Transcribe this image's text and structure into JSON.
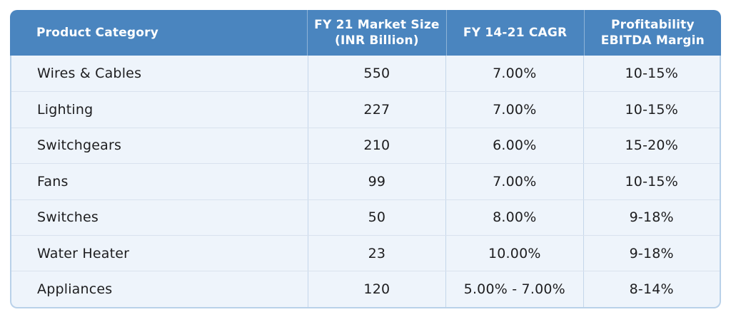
{
  "theme": {
    "header_bg": "#4a85bf",
    "header_text": "#ffffff",
    "row_bg": "#eef4fb",
    "body_text": "#1d1d1f",
    "border_outer": "#b9d1e9",
    "divider_vertical": "#c5d6ea",
    "divider_horizontal": "#d9e2ee"
  },
  "chart_data": {
    "type": "table",
    "title": "",
    "columns": [
      "Product Category",
      "FY 21 Market Size (INR Billion)",
      "FY 14-21 CAGR",
      "Profitability EBITDA Margin"
    ],
    "rows": [
      {
        "category": "Wires & Cables",
        "market_size_inr_billion": 550,
        "cagr": "7.00%",
        "ebitda_margin": "10-15%"
      },
      {
        "category": "Lighting",
        "market_size_inr_billion": 227,
        "cagr": "7.00%",
        "ebitda_margin": "10-15%"
      },
      {
        "category": "Switchgears",
        "market_size_inr_billion": 210,
        "cagr": "6.00%",
        "ebitda_margin": "15-20%"
      },
      {
        "category": "Fans",
        "market_size_inr_billion": 99,
        "cagr": "7.00%",
        "ebitda_margin": "10-15%"
      },
      {
        "category": "Switches",
        "market_size_inr_billion": 50,
        "cagr": "8.00%",
        "ebitda_margin": "9-18%"
      },
      {
        "category": "Water Heater",
        "market_size_inr_billion": 23,
        "cagr": "10.00%",
        "ebitda_margin": "9-18%"
      },
      {
        "category": "Appliances",
        "market_size_inr_billion": 120,
        "cagr": "5.00% - 7.00%",
        "ebitda_margin": "8-14%"
      }
    ]
  },
  "table": {
    "columns": [
      {
        "label": "Product Category"
      },
      {
        "label": "FY 21 Market Size\n(INR Billion)"
      },
      {
        "label": "FY 14-21 CAGR"
      },
      {
        "label": "Profitability\nEBITDA Margin"
      }
    ],
    "rows": [
      [
        "Wires & Cables",
        "550",
        "7.00%",
        "10-15%"
      ],
      [
        "Lighting",
        "227",
        "7.00%",
        "10-15%"
      ],
      [
        "Switchgears",
        "210",
        "6.00%",
        "15-20%"
      ],
      [
        "Fans",
        "99",
        "7.00%",
        "10-15%"
      ],
      [
        "Switches",
        "50",
        "8.00%",
        "9-18%"
      ],
      [
        "Water Heater",
        "23",
        "10.00%",
        "9-18%"
      ],
      [
        "Appliances",
        "120",
        "5.00% - 7.00%",
        "8-14%"
      ]
    ]
  }
}
